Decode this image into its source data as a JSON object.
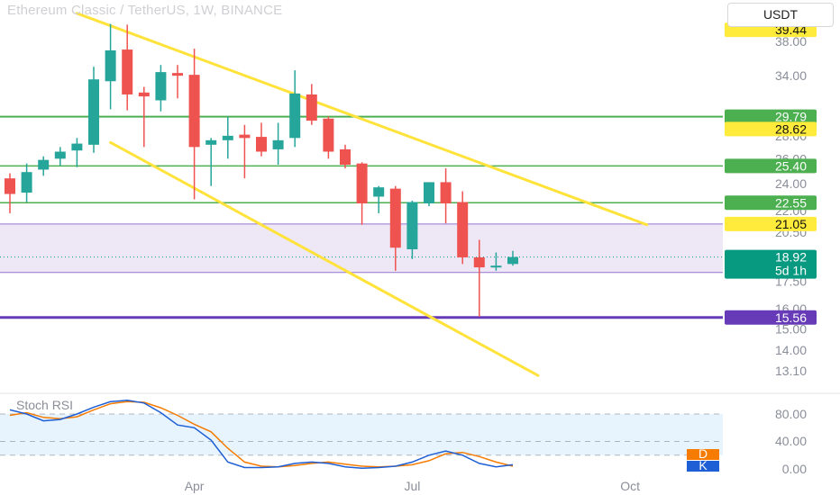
{
  "header": {
    "title": "Ethereum Classic / TetherUS, 1W, BINANCE",
    "currency": "USDT"
  },
  "indicator": {
    "name": "Stoch RSI",
    "scale_labels": [
      "80.00",
      "40.00",
      "0.00"
    ],
    "legend": [
      {
        "key": "D",
        "color": "#f57c00"
      },
      {
        "key": "K",
        "color": "#1e5fd6"
      }
    ]
  },
  "colors": {
    "up": "#26a69a",
    "down": "#ef5350",
    "channel": "#ffe23a",
    "support": "#4caf50",
    "zone": "#ede7f6",
    "zone_border": "#9575cd",
    "base_line": "#673ab7",
    "k_line": "#1e5fd6",
    "d_line": "#f57c00",
    "price_tag": "#089981"
  },
  "chart_data": {
    "type": "candlestick",
    "price_axis": {
      "scale": "log",
      "tick_labels": [
        "38.00",
        "34.00",
        "28.00",
        "26.00",
        "24.00",
        "22.00",
        "20.50",
        "17.50",
        "16.00",
        "15.00",
        "14.00",
        "13.10"
      ]
    },
    "time_axis": {
      "labels": [
        {
          "label": "Apr",
          "index": 11
        },
        {
          "label": "Jul",
          "index": 24
        },
        {
          "label": "Oct",
          "index": 37
        }
      ]
    },
    "candles": [
      {
        "o": 24.4,
        "h": 24.8,
        "l": 21.8,
        "c": 23.2
      },
      {
        "o": 23.3,
        "h": 25.6,
        "l": 22.6,
        "c": 24.9
      },
      {
        "o": 25.1,
        "h": 26.2,
        "l": 24.6,
        "c": 25.9
      },
      {
        "o": 26.0,
        "h": 27.0,
        "l": 25.4,
        "c": 26.6
      },
      {
        "o": 26.7,
        "h": 27.8,
        "l": 25.3,
        "c": 27.3
      },
      {
        "o": 27.2,
        "h": 35.0,
        "l": 26.5,
        "c": 33.6
      },
      {
        "o": 33.4,
        "h": 40.2,
        "l": 30.5,
        "c": 36.9
      },
      {
        "o": 37.0,
        "h": 40.1,
        "l": 30.4,
        "c": 32.0
      },
      {
        "o": 32.2,
        "h": 32.8,
        "l": 27.0,
        "c": 31.8
      },
      {
        "o": 31.4,
        "h": 35.2,
        "l": 30.3,
        "c": 34.4
      },
      {
        "o": 34.3,
        "h": 35.2,
        "l": 31.6,
        "c": 34.0
      },
      {
        "o": 34.1,
        "h": 37.1,
        "l": 22.8,
        "c": 27.0
      },
      {
        "o": 27.2,
        "h": 27.8,
        "l": 23.8,
        "c": 27.6
      },
      {
        "o": 27.6,
        "h": 29.8,
        "l": 26.0,
        "c": 28.0
      },
      {
        "o": 28.1,
        "h": 29.0,
        "l": 24.4,
        "c": 27.8
      },
      {
        "o": 27.9,
        "h": 29.2,
        "l": 26.2,
        "c": 26.6
      },
      {
        "o": 26.8,
        "h": 29.2,
        "l": 25.5,
        "c": 27.6
      },
      {
        "o": 27.8,
        "h": 34.6,
        "l": 27.0,
        "c": 32.1
      },
      {
        "o": 32.0,
        "h": 33.1,
        "l": 29.0,
        "c": 29.4
      },
      {
        "o": 29.6,
        "h": 29.8,
        "l": 26.0,
        "c": 26.6
      },
      {
        "o": 26.8,
        "h": 27.2,
        "l": 25.2,
        "c": 25.5
      },
      {
        "o": 25.6,
        "h": 25.7,
        "l": 21.0,
        "c": 22.5
      },
      {
        "o": 23.0,
        "h": 23.8,
        "l": 21.8,
        "c": 23.7
      },
      {
        "o": 23.6,
        "h": 23.8,
        "l": 18.1,
        "c": 19.5
      },
      {
        "o": 19.4,
        "h": 22.7,
        "l": 18.8,
        "c": 22.6
      },
      {
        "o": 22.5,
        "h": 24.1,
        "l": 22.3,
        "c": 24.1
      },
      {
        "o": 24.1,
        "h": 25.2,
        "l": 21.1,
        "c": 22.5
      },
      {
        "o": 22.6,
        "h": 23.4,
        "l": 18.5,
        "c": 18.9
      },
      {
        "o": 18.9,
        "h": 20.0,
        "l": 15.6,
        "c": 18.3
      },
      {
        "o": 18.3,
        "h": 19.2,
        "l": 18.1,
        "c": 18.4
      },
      {
        "o": 18.5,
        "h": 19.3,
        "l": 18.4,
        "c": 18.92
      }
    ],
    "horizontal_levels": [
      {
        "label": "39.44",
        "value": 39.44,
        "kind": "yellow-tag"
      },
      {
        "label": "29.79",
        "value": 29.79,
        "kind": "support"
      },
      {
        "label": "28.62",
        "value": 28.62,
        "kind": "yellow-tag"
      },
      {
        "label": "25.40",
        "value": 25.4,
        "kind": "support"
      },
      {
        "label": "22.55",
        "value": 22.55,
        "kind": "support"
      },
      {
        "label": "21.05",
        "value": 21.05,
        "kind": "yellow-tag"
      },
      {
        "label": "15.56",
        "value": 15.56,
        "kind": "base"
      }
    ],
    "zone": {
      "top": 21.05,
      "bottom": 18.0
    },
    "current_price": {
      "label": "18.92",
      "value": 18.92,
      "countdown": "5d 1h"
    },
    "channel_lines": [
      {
        "from": {
          "index": 4,
          "price": 41.6
        },
        "to": {
          "index": 38,
          "price": 21.0
        }
      },
      {
        "from": {
          "index": 6,
          "price": 27.4
        },
        "to": {
          "index": 31.5,
          "price": 12.9
        }
      }
    ],
    "stoch_rsi": {
      "k": [
        86,
        80,
        70,
        72,
        80,
        90,
        98,
        100,
        96,
        82,
        64,
        60,
        42,
        10,
        2,
        2,
        3,
        8,
        10,
        8,
        3,
        1,
        2,
        4,
        10,
        20,
        26,
        20,
        8,
        3,
        6
      ],
      "d": [
        78,
        82,
        75,
        73,
        76,
        86,
        95,
        98,
        97,
        89,
        78,
        65,
        54,
        30,
        10,
        4,
        3,
        5,
        8,
        10,
        7,
        4,
        3,
        4,
        6,
        12,
        22,
        24,
        18,
        10,
        4
      ]
    }
  }
}
